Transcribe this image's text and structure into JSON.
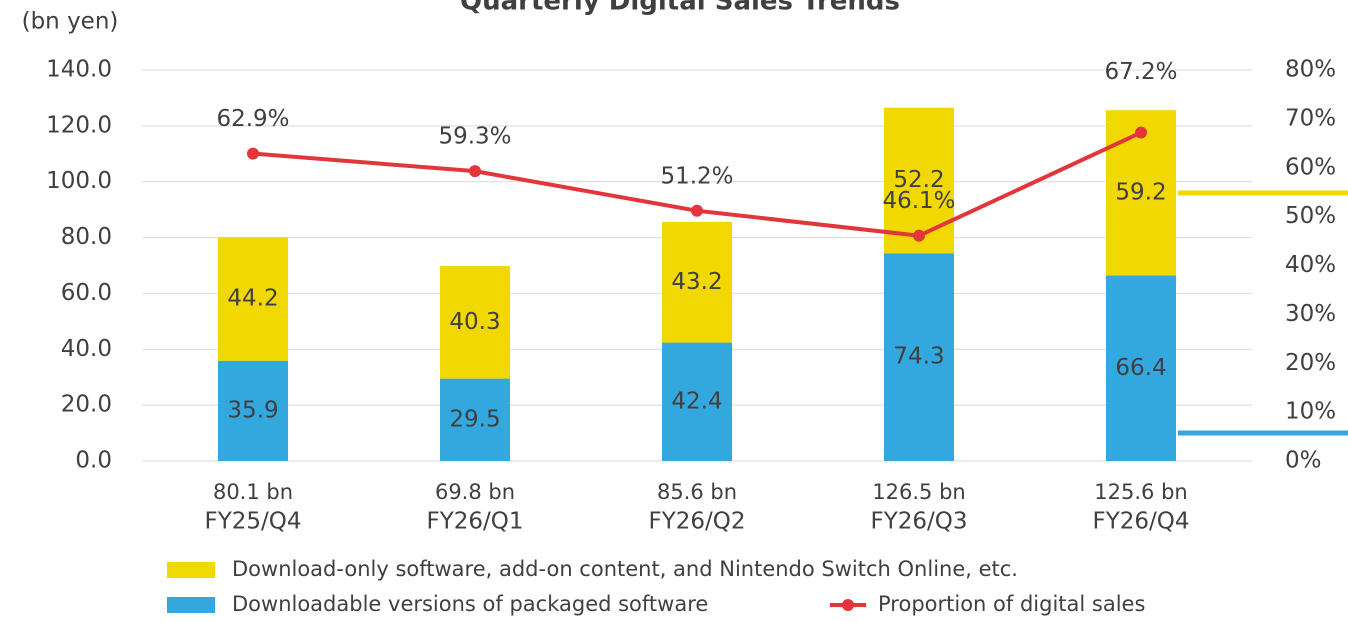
{
  "chart_data": {
    "type": "stacked-bar-line",
    "title": "Quarterly Digital Sales Trends",
    "y_axis_label": "(bn yen)",
    "categories": [
      "FY25/Q4",
      "FY26/Q1",
      "FY26/Q2",
      "FY26/Q3",
      "FY26/Q4"
    ],
    "category_totals": [
      "80.1 bn",
      "69.8 bn",
      "85.6 bn",
      "126.5 bn",
      "125.6 bn"
    ],
    "series": [
      {
        "name": "Downloadable versions of packaged software",
        "color": "#33a8df",
        "values": [
          35.9,
          29.5,
          42.4,
          74.3,
          66.4
        ]
      },
      {
        "name": "Download-only software, add-on content, and Nintendo Switch Online, etc.",
        "color": "#f0d800",
        "values": [
          44.2,
          40.3,
          43.2,
          52.2,
          59.2
        ]
      },
      {
        "name": "Proportion of digital sales",
        "color": "#e3363a",
        "axis": "y2",
        "values": [
          62.9,
          59.3,
          51.2,
          46.1,
          67.2
        ],
        "value_labels": [
          "62.9%",
          "59.3%",
          "51.2%",
          "46.1%",
          "67.2%"
        ]
      }
    ],
    "ylim": [
      0,
      140
    ],
    "yticks": [
      {
        "value": 0,
        "label": "0.0"
      },
      {
        "value": 20,
        "label": "20.0"
      },
      {
        "value": 40,
        "label": "40.0"
      },
      {
        "value": 60,
        "label": "60.0"
      },
      {
        "value": 80,
        "label": "80.0"
      },
      {
        "value": 100,
        "label": "100.0"
      },
      {
        "value": 120,
        "label": "120.0"
      },
      {
        "value": 140,
        "label": "140.0"
      }
    ],
    "y2lim": [
      0,
      80
    ],
    "y2ticks": [
      {
        "value": 0,
        "label": "0%"
      },
      {
        "value": 10,
        "label": "10%"
      },
      {
        "value": 20,
        "label": "20%"
      },
      {
        "value": 30,
        "label": "30%"
      },
      {
        "value": 40,
        "label": "40%"
      },
      {
        "value": 50,
        "label": "50%"
      },
      {
        "value": 60,
        "label": "60%"
      },
      {
        "value": 70,
        "label": "70%"
      },
      {
        "value": 80,
        "label": "80%"
      }
    ],
    "grid": true
  }
}
